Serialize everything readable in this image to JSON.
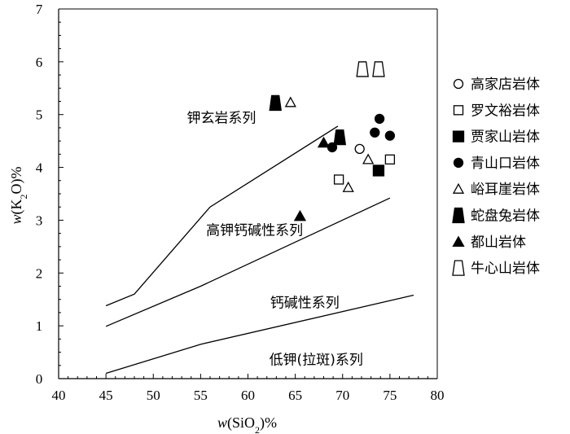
{
  "chart_data": {
    "type": "scatter",
    "title": "",
    "xlabel": {
      "italic": "w",
      "pre": "(SiO",
      "sub": "2",
      "post": ")%"
    },
    "ylabel": {
      "italic": "w",
      "pre": "(K",
      "sub": "2",
      "mid": "O",
      "post": ")%"
    },
    "xlim": [
      40,
      80
    ],
    "ylim": [
      0,
      7
    ],
    "xticks": [
      40,
      45,
      50,
      55,
      60,
      65,
      70,
      75,
      80
    ],
    "yticks": [
      0,
      1,
      2,
      3,
      4,
      5,
      6,
      7
    ],
    "grid": false,
    "legend_position": "right",
    "boundaries": [
      {
        "name": "upper",
        "points": [
          [
            45,
            1.38
          ],
          [
            48,
            1.6
          ],
          [
            56,
            3.25
          ],
          [
            69.5,
            4.78
          ]
        ]
      },
      {
        "name": "middle",
        "points": [
          [
            45,
            0.99
          ],
          [
            55,
            1.75
          ],
          [
            75,
            3.42
          ]
        ]
      },
      {
        "name": "lower",
        "points": [
          [
            45,
            0.1
          ],
          [
            55,
            0.65
          ],
          [
            77.5,
            1.58
          ]
        ]
      }
    ],
    "region_labels": [
      {
        "text": "钾玄岩系列",
        "x": 57.2,
        "y": 4.85
      },
      {
        "text": "高钾钙碱性系列",
        "x": 60.7,
        "y": 2.72
      },
      {
        "text": "钙碱性系列",
        "x": 66.0,
        "y": 1.35
      },
      {
        "text": "低钾(拉斑)系列",
        "x": 67.2,
        "y": 0.27
      }
    ],
    "series": [
      {
        "name": "高家店岩体",
        "marker": "circle-open",
        "points": [
          [
            71.8,
            4.35
          ]
        ]
      },
      {
        "name": "罗文裕岩体",
        "marker": "square-open",
        "points": [
          [
            69.6,
            3.77
          ],
          [
            75.0,
            4.15
          ]
        ]
      },
      {
        "name": "贾家山岩体",
        "marker": "square-filled",
        "points": [
          [
            73.8,
            3.94
          ]
        ]
      },
      {
        "name": "青山口岩体",
        "marker": "circle-filled",
        "points": [
          [
            68.9,
            4.38
          ],
          [
            73.4,
            4.66
          ],
          [
            73.9,
            4.92
          ],
          [
            75.0,
            4.6
          ]
        ]
      },
      {
        "name": "峪耳崖岩体",
        "marker": "triangle-open",
        "points": [
          [
            64.5,
            5.23
          ],
          [
            70.6,
            3.62
          ],
          [
            72.7,
            4.15
          ]
        ]
      },
      {
        "name": "蛇盘兔岩体",
        "marker": "trapezoid-filled",
        "points": [
          [
            62.9,
            5.22
          ],
          [
            69.7,
            4.57
          ]
        ]
      },
      {
        "name": "都山岩体",
        "marker": "triangle-filled",
        "points": [
          [
            65.5,
            3.08
          ],
          [
            68.0,
            4.47
          ]
        ]
      },
      {
        "name": "牛心山岩体",
        "marker": "trapezoid-open",
        "points": [
          [
            72.1,
            5.86
          ],
          [
            73.8,
            5.86
          ]
        ]
      }
    ]
  }
}
